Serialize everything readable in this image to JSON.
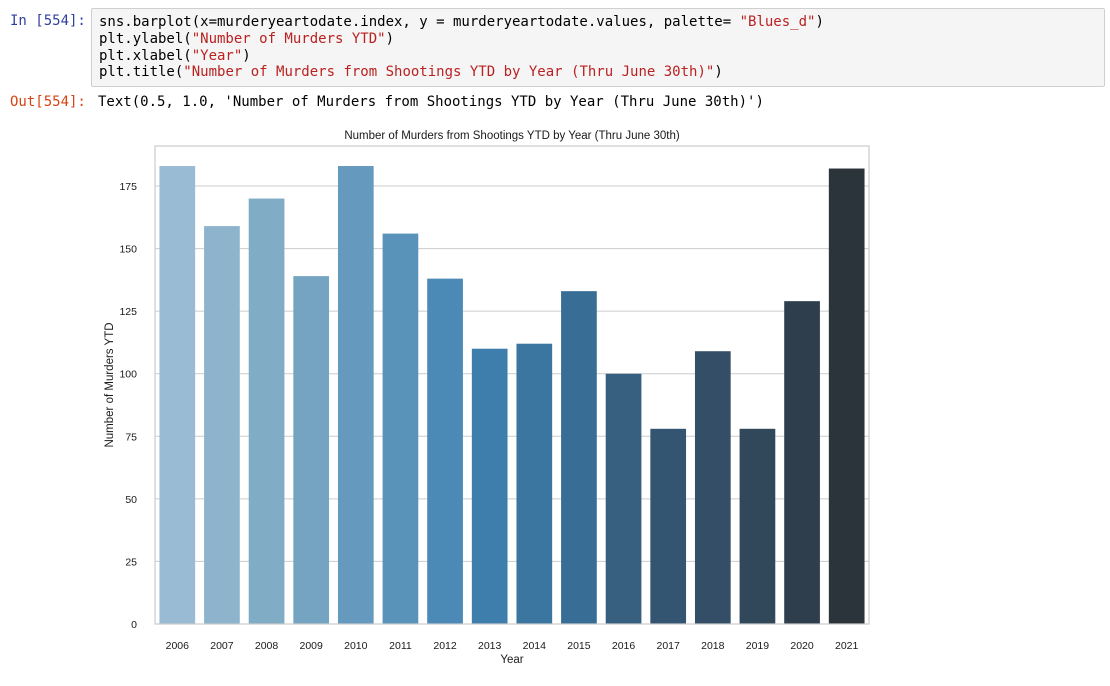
{
  "input_cell": {
    "prompt": "In [554]:",
    "lines": [
      [
        {
          "t": "sns.barplot(x=murderyeartodate.index, y = murderyeartodate.values, palette= ",
          "s": false
        },
        {
          "t": "\"Blues_d\"",
          "s": true
        },
        {
          "t": ")",
          "s": false
        }
      ],
      [
        {
          "t": "plt.ylabel(",
          "s": false
        },
        {
          "t": "\"Number of Murders YTD\"",
          "s": true
        },
        {
          "t": ")",
          "s": false
        }
      ],
      [
        {
          "t": "plt.xlabel(",
          "s": false
        },
        {
          "t": "\"Year\"",
          "s": true
        },
        {
          "t": ")",
          "s": false
        }
      ],
      [
        {
          "t": "plt.title(",
          "s": false
        },
        {
          "t": "\"Number of Murders from Shootings YTD by Year (Thru June 30th)\"",
          "s": true
        },
        {
          "t": ")",
          "s": false
        }
      ]
    ]
  },
  "output_cell": {
    "prompt": "Out[554]:",
    "text": "Text(0.5, 1.0, 'Number of Murders from Shootings YTD by Year (Thru June 30th)')"
  },
  "chart_data": {
    "type": "bar",
    "title": "Number of Murders from Shootings YTD by Year (Thru June 30th)",
    "xlabel": "Year",
    "ylabel": "Number of Murders YTD",
    "categories": [
      "2006",
      "2007",
      "2008",
      "2009",
      "2010",
      "2011",
      "2012",
      "2013",
      "2014",
      "2015",
      "2016",
      "2017",
      "2018",
      "2019",
      "2020",
      "2021"
    ],
    "values": [
      183,
      159,
      170,
      139,
      183,
      156,
      138,
      110,
      112,
      133,
      100,
      78,
      109,
      78,
      129,
      182
    ],
    "ylim": [
      0,
      191
    ],
    "yticks": [
      0,
      25,
      50,
      75,
      100,
      125,
      150,
      175
    ],
    "grid": "horizontal",
    "palette": "Blues_d",
    "colors": [
      "#99bbd3",
      "#8db4cc",
      "#81acc6",
      "#74a4c2",
      "#6699be",
      "#5993b9",
      "#4b89b7",
      "#3e7ead",
      "#3b76a0",
      "#386e95",
      "#365f80",
      "#345571",
      "#334e66",
      "#31475a",
      "#2e3e4c",
      "#2b333b"
    ]
  }
}
